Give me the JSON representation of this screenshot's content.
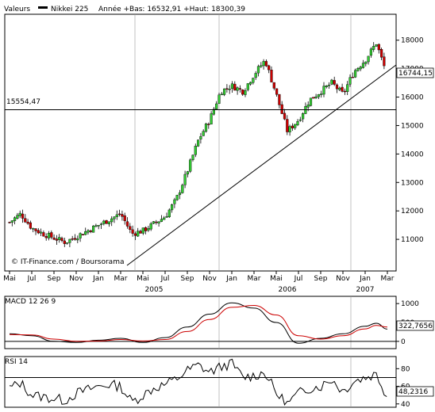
{
  "header": {
    "valeurs_label": "Valeurs",
    "series_name": "Nikkei 225",
    "range_text": "Année +Bas: 16532,91 +Haut: 18300,39"
  },
  "price_panel": {
    "credit": "© IT-Finance.com / Boursorama",
    "current_value_label": "16744,15",
    "support_label": "15554,47",
    "y_ticks": [
      "18000",
      "17000",
      "16000",
      "15000",
      "14000",
      "13000",
      "12000",
      "11000"
    ],
    "x_months": [
      "Mai",
      "Jul",
      "Sep",
      "Nov",
      "Jan",
      "Mar",
      "Mai",
      "Jul",
      "Sep",
      "Nov",
      "Jan",
      "Mar",
      "Mai",
      "Jul",
      "Sep",
      "Nov",
      "Jan",
      "Mar"
    ],
    "x_years": [
      "2005",
      "2006",
      "2007"
    ]
  },
  "macd_panel": {
    "title": "MACD 12 26 9",
    "y_ticks": [
      "1000",
      "500",
      "0"
    ],
    "current_value_label": "322,7656"
  },
  "rsi_panel": {
    "title": "RSI 14",
    "y_ticks": [
      "80",
      "60",
      "40"
    ],
    "current_value_label": "48,2316"
  },
  "colors": {
    "up": "#33cc33",
    "down": "#cc0000",
    "frame": "#000000",
    "grid": "#999999",
    "macd_signal": "#cc0000"
  },
  "chart_data": [
    {
      "type": "candlestick",
      "title": "Nikkei 225",
      "y_axis_side": "right",
      "ylim": [
        10000,
        18800
      ],
      "support_level": 15554.47,
      "last_value": 16744.15,
      "x_range": [
        "2004-05",
        "2007-03"
      ],
      "anchors": [
        {
          "t": "2004-05",
          "v": 11600
        },
        {
          "t": "2004-06",
          "v": 11900
        },
        {
          "t": "2004-07",
          "v": 11400
        },
        {
          "t": "2004-08",
          "v": 11200
        },
        {
          "t": "2004-09",
          "v": 11050
        },
        {
          "t": "2004-10",
          "v": 10900
        },
        {
          "t": "2004-11",
          "v": 11100
        },
        {
          "t": "2004-12",
          "v": 11300
        },
        {
          "t": "2005-01",
          "v": 11500
        },
        {
          "t": "2005-02",
          "v": 11700
        },
        {
          "t": "2005-03",
          "v": 11900
        },
        {
          "t": "2005-04",
          "v": 11200
        },
        {
          "t": "2005-05",
          "v": 11300
        },
        {
          "t": "2005-06",
          "v": 11550
        },
        {
          "t": "2005-07",
          "v": 11800
        },
        {
          "t": "2005-08",
          "v": 12400
        },
        {
          "t": "2005-09",
          "v": 13400
        },
        {
          "t": "2005-10",
          "v": 14500
        },
        {
          "t": "2005-11",
          "v": 15200
        },
        {
          "t": "2005-12",
          "v": 16200
        },
        {
          "t": "2006-01",
          "v": 16400
        },
        {
          "t": "2006-02",
          "v": 16200
        },
        {
          "t": "2006-03",
          "v": 16800
        },
        {
          "t": "2006-04",
          "v": 17300
        },
        {
          "t": "2006-05",
          "v": 16100
        },
        {
          "t": "2006-06",
          "v": 14800
        },
        {
          "t": "2006-07",
          "v": 15200
        },
        {
          "t": "2006-08",
          "v": 15900
        },
        {
          "t": "2006-09",
          "v": 16200
        },
        {
          "t": "2006-10",
          "v": 16500
        },
        {
          "t": "2006-11",
          "v": 16100
        },
        {
          "t": "2006-12",
          "v": 16900
        },
        {
          "t": "2007-01",
          "v": 17300
        },
        {
          "t": "2007-02",
          "v": 17900
        },
        {
          "t": "2007-03",
          "v": 16744
        }
      ],
      "trendline": [
        {
          "t": "2005-05",
          "v": 10500
        },
        {
          "t": "2007-03",
          "v": 16900
        }
      ]
    },
    {
      "type": "line",
      "title": "MACD 12 26 9",
      "ylim": [
        -150,
        1150
      ],
      "zero_line": 0,
      "series": [
        {
          "values": [
            {
              "t": "2004-05",
              "v": 200
            },
            {
              "t": "2004-07",
              "v": 150
            },
            {
              "t": "2004-09",
              "v": 0
            },
            {
              "t": "2004-11",
              "v": -30
            },
            {
              "t": "2005-01",
              "v": 30
            },
            {
              "t": "2005-03",
              "v": 80
            },
            {
              "t": "2005-05",
              "v": -30
            },
            {
              "t": "2005-07",
              "v": 100
            },
            {
              "t": "2005-09",
              "v": 380
            },
            {
              "t": "2005-11",
              "v": 720
            },
            {
              "t": "2006-01",
              "v": 1020
            },
            {
              "t": "2006-03",
              "v": 880
            },
            {
              "t": "2006-05",
              "v": 500
            },
            {
              "t": "2006-07",
              "v": -50
            },
            {
              "t": "2006-09",
              "v": 80
            },
            {
              "t": "2006-11",
              "v": 200
            },
            {
              "t": "2007-01",
              "v": 400
            },
            {
              "t": "2007-02",
              "v": 480
            },
            {
              "t": "2007-03",
              "v": 323
            }
          ]
        },
        {
          "values": [
            {
              "t": "2004-05",
              "v": 180
            },
            {
              "t": "2004-07",
              "v": 170
            },
            {
              "t": "2004-09",
              "v": 60
            },
            {
              "t": "2004-11",
              "v": 0
            },
            {
              "t": "2005-01",
              "v": 10
            },
            {
              "t": "2005-03",
              "v": 50
            },
            {
              "t": "2005-05",
              "v": 10
            },
            {
              "t": "2005-07",
              "v": 50
            },
            {
              "t": "2005-09",
              "v": 260
            },
            {
              "t": "2005-11",
              "v": 580
            },
            {
              "t": "2006-01",
              "v": 900
            },
            {
              "t": "2006-03",
              "v": 950
            },
            {
              "t": "2006-05",
              "v": 700
            },
            {
              "t": "2006-07",
              "v": 150
            },
            {
              "t": "2006-09",
              "v": 60
            },
            {
              "t": "2006-11",
              "v": 150
            },
            {
              "t": "2007-01",
              "v": 330
            },
            {
              "t": "2007-02",
              "v": 420
            },
            {
              "t": "2007-03",
              "v": 380
            }
          ]
        }
      ]
    },
    {
      "type": "line",
      "title": "RSI 14",
      "ylim": [
        38,
        92
      ],
      "reference_levels": [
        70,
        30
      ],
      "series": [
        {
          "values": [
            {
              "t": "2004-05",
              "v": 58
            },
            {
              "t": "2004-06",
              "v": 64
            },
            {
              "t": "2004-07",
              "v": 50
            },
            {
              "t": "2004-08",
              "v": 48
            },
            {
              "t": "2004-09",
              "v": 46
            },
            {
              "t": "2004-10",
              "v": 44
            },
            {
              "t": "2004-11",
              "v": 52
            },
            {
              "t": "2004-12",
              "v": 56
            },
            {
              "t": "2005-01",
              "v": 60
            },
            {
              "t": "2005-02",
              "v": 62
            },
            {
              "t": "2005-03",
              "v": 60
            },
            {
              "t": "2005-04",
              "v": 42
            },
            {
              "t": "2005-05",
              "v": 50
            },
            {
              "t": "2005-06",
              "v": 58
            },
            {
              "t": "2005-07",
              "v": 62
            },
            {
              "t": "2005-08",
              "v": 68
            },
            {
              "t": "2005-09",
              "v": 78
            },
            {
              "t": "2005-10",
              "v": 84
            },
            {
              "t": "2005-11",
              "v": 76
            },
            {
              "t": "2005-12",
              "v": 82
            },
            {
              "t": "2006-01",
              "v": 86
            },
            {
              "t": "2006-02",
              "v": 70
            },
            {
              "t": "2006-03",
              "v": 72
            },
            {
              "t": "2006-04",
              "v": 76
            },
            {
              "t": "2006-05",
              "v": 52
            },
            {
              "t": "2006-06",
              "v": 40
            },
            {
              "t": "2006-07",
              "v": 52
            },
            {
              "t": "2006-08",
              "v": 58
            },
            {
              "t": "2006-09",
              "v": 60
            },
            {
              "t": "2006-10",
              "v": 68
            },
            {
              "t": "2006-11",
              "v": 54
            },
            {
              "t": "2006-12",
              "v": 66
            },
            {
              "t": "2007-01",
              "v": 70
            },
            {
              "t": "2007-02",
              "v": 74
            },
            {
              "t": "2007-03",
              "v": 48
            }
          ]
        }
      ]
    }
  ]
}
